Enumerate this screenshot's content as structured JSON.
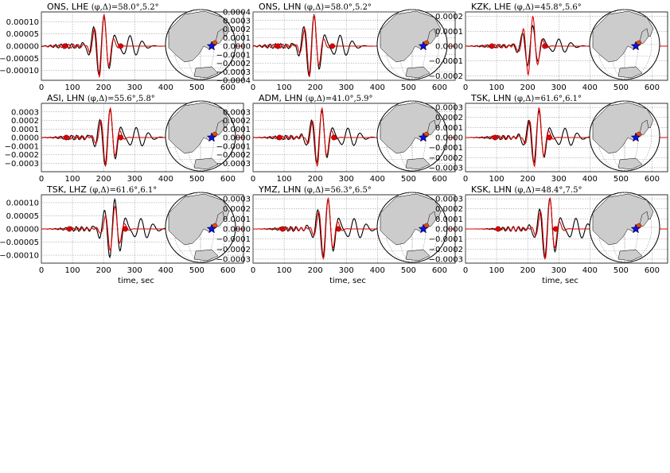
{
  "colors": {
    "observed": "#000000",
    "synthetic": "#e00000",
    "grid": "#888888",
    "land": "#cccccc",
    "station": "#e05010",
    "epicenter": "#1010e0"
  },
  "xlabel": "time, sec",
  "chart_data": [
    {
      "type": "line",
      "station": "ONS, LHE",
      "angles": "(φ,Δ)=58.0°,5.2°",
      "xlim": [
        0,
        650
      ],
      "xticks": [
        0,
        100,
        200,
        300,
        400,
        500,
        600
      ],
      "ylim": [
        -0.00014,
        0.00014
      ],
      "yticks": [
        -0.0001,
        -5e-05,
        0,
        5e-05,
        0.0001
      ],
      "ytick_labels": [
        "−0.00010",
        "−0.00005",
        "0.00000",
        "0.00005",
        "0.00010"
      ],
      "center": 195,
      "amp_obs": 0.000125,
      "amp_syn": 0.000135,
      "markers": [
        75,
        255
      ],
      "series": [
        {
          "role": "observed"
        },
        {
          "role": "synthetic"
        }
      ],
      "grid": true
    },
    {
      "type": "line",
      "station": "ONS, LHN",
      "angles": "(φ,Δ)=58.0°,5.2°",
      "xlim": [
        0,
        650
      ],
      "xticks": [
        0,
        100,
        200,
        300,
        400,
        500,
        600
      ],
      "ylim": [
        -0.0004,
        0.0004
      ],
      "yticks": [
        -0.0004,
        -0.0003,
        -0.0002,
        -0.0001,
        0,
        0.0001,
        0.0002,
        0.0003,
        0.0004
      ],
      "ytick_labels": [
        "−0.0004",
        "−0.0003",
        "−0.0002",
        "−0.0001",
        "0.0000",
        "0.0001",
        "0.0002",
        "0.0003",
        "0.0004"
      ],
      "center": 190,
      "amp_obs": 0.00037,
      "amp_syn": 0.00038,
      "markers": [
        80,
        255
      ],
      "series": [
        {
          "role": "observed"
        },
        {
          "role": "synthetic"
        }
      ],
      "grid": true
    },
    {
      "type": "line",
      "station": "KZK, LHE",
      "angles": "(φ,Δ)=45.8°,5.6°",
      "xlim": [
        0,
        650
      ],
      "xticks": [
        0,
        100,
        200,
        300,
        400,
        500,
        600
      ],
      "ylim": [
        -0.00023,
        0.00023
      ],
      "yticks": [
        -0.0002,
        -0.0001,
        0,
        0.0001,
        0.0002
      ],
      "ytick_labels": [
        "−0.0002",
        "−0.0001",
        "0.0000",
        "0.0001",
        "0.0002"
      ],
      "center": 210,
      "amp_obs": 0.00014,
      "amp_syn": 0.00021,
      "markers": [
        85,
        255
      ],
      "series": [
        {
          "role": "observed"
        },
        {
          "role": "synthetic"
        }
      ],
      "grid": true
    },
    {
      "type": "line",
      "station": "ASI, LHN",
      "angles": "(φ,Δ)=55.6°,5.8°",
      "xlim": [
        0,
        650
      ],
      "xticks": [
        0,
        100,
        200,
        300,
        400,
        500,
        600
      ],
      "ylim": [
        -0.0004,
        0.0004
      ],
      "yticks": [
        -0.0003,
        -0.0002,
        -0.0001,
        0,
        0.0001,
        0.0002,
        0.0003
      ],
      "ytick_labels": [
        "−0.0003",
        "−0.0002",
        "−0.0001",
        "0.0000",
        "0.0001",
        "0.0002",
        "0.0003"
      ],
      "center": 215,
      "amp_obs": 0.00034,
      "amp_syn": 0.00036,
      "markers": [
        80,
        255
      ],
      "series": [
        {
          "role": "observed"
        },
        {
          "role": "synthetic"
        }
      ],
      "grid": true
    },
    {
      "type": "line",
      "station": "ADM, LHN",
      "angles": "(φ,Δ)=41.0°,5.9°",
      "xlim": [
        0,
        650
      ],
      "xticks": [
        0,
        100,
        200,
        300,
        400,
        500,
        600
      ],
      "ylim": [
        -0.0004,
        0.0004
      ],
      "yticks": [
        -0.0003,
        -0.0002,
        -0.0001,
        0,
        0.0001,
        0.0002,
        0.0003
      ],
      "ytick_labels": [
        "−0.0003",
        "−0.0002",
        "−0.0001",
        "0.0000",
        "0.0001",
        "0.0002",
        "0.0003"
      ],
      "center": 215,
      "amp_obs": 0.00032,
      "amp_syn": 0.00036,
      "markers": [
        85,
        260
      ],
      "series": [
        {
          "role": "observed"
        },
        {
          "role": "synthetic"
        }
      ],
      "grid": true
    },
    {
      "type": "line",
      "station": "TSK, LHN",
      "angles": "(φ,Δ)=61.6°,6.1°",
      "xlim": [
        0,
        650
      ],
      "xticks": [
        0,
        100,
        200,
        300,
        400,
        500,
        600
      ],
      "ylim": [
        -0.00034,
        0.00034
      ],
      "yticks": [
        -0.0003,
        -0.0002,
        -0.0001,
        0,
        0.0001,
        0.0002,
        0.0003
      ],
      "ytick_labels": [
        "−0.0003",
        "−0.0002",
        "−0.0001",
        "0.0000",
        "0.0001",
        "0.0002",
        "0.0003"
      ],
      "center": 230,
      "amp_obs": 0.00027,
      "amp_syn": 0.00031,
      "markers": [
        95,
        270
      ],
      "series": [
        {
          "role": "observed"
        },
        {
          "role": "synthetic"
        }
      ],
      "grid": true
    },
    {
      "type": "line",
      "station": "TSK, LHZ",
      "angles": "(φ,Δ)=61.6°,6.1°",
      "xlim": [
        0,
        650
      ],
      "xticks": [
        0,
        100,
        200,
        300,
        400,
        500,
        600
      ],
      "ylim": [
        -0.00013,
        0.00013
      ],
      "yticks": [
        -0.0001,
        -5e-05,
        0,
        5e-05,
        0.0001
      ],
      "ytick_labels": [
        "−0.00010",
        "−0.00005",
        "0.00000",
        "0.00005",
        "0.00010"
      ],
      "center": 230,
      "amp_obs": 0.000115,
      "amp_syn": 9e-05,
      "markers": [
        90,
        270
      ],
      "series": [
        {
          "role": "observed"
        },
        {
          "role": "synthetic"
        }
      ],
      "grid": true
    },
    {
      "type": "line",
      "station": "YMZ, LHN",
      "angles": "(φ,Δ)=56.3°,6.5°",
      "xlim": [
        0,
        650
      ],
      "xticks": [
        0,
        100,
        200,
        300,
        400,
        500,
        600
      ],
      "ylim": [
        -0.00034,
        0.00034
      ],
      "yticks": [
        -0.0003,
        -0.0002,
        -0.0001,
        0,
        0.0001,
        0.0002,
        0.0003
      ],
      "ytick_labels": [
        "−0.0003",
        "−0.0002",
        "−0.0001",
        "0.0000",
        "0.0001",
        "0.0002",
        "0.0003"
      ],
      "center": 235,
      "amp_obs": 0.0003,
      "amp_syn": 0.00032,
      "markers": [
        95,
        275
      ],
      "series": [
        {
          "role": "observed"
        },
        {
          "role": "synthetic"
        }
      ],
      "grid": true
    },
    {
      "type": "line",
      "station": "KSK, LHN",
      "angles": "(φ,Δ)=48.4°,7.5°",
      "xlim": [
        0,
        650
      ],
      "xticks": [
        0,
        100,
        200,
        300,
        400,
        500,
        600
      ],
      "ylim": [
        -0.00034,
        0.00034
      ],
      "yticks": [
        -0.0003,
        -0.0002,
        -0.0001,
        0,
        0.0001,
        0.0002,
        0.0003
      ],
      "ytick_labels": [
        "−0.0003",
        "−0.0002",
        "−0.0001",
        "0.0000",
        "0.0001",
        "0.0002",
        "0.0003"
      ],
      "center": 265,
      "amp_obs": 0.00031,
      "amp_syn": 0.00032,
      "markers": [
        105,
        290
      ],
      "series": [
        {
          "role": "observed"
        },
        {
          "role": "synthetic"
        }
      ],
      "grid": true
    }
  ]
}
